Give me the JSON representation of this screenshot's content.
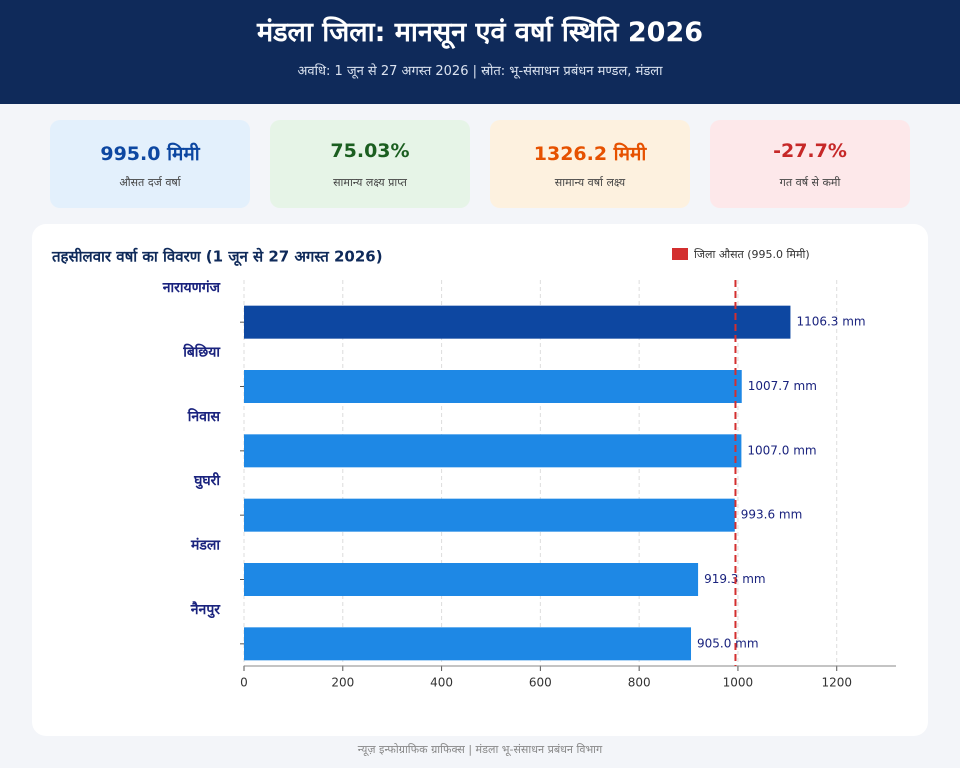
{
  "header": {
    "title": "मंडला जिला: मानसून एवं वर्षा स्थिति 2026",
    "subtitle": "अवधि: 1 जून से 27 अगस्त 2026  |  स्रोत: भू-संसाधन प्रबंधन मण्डल, मंडला"
  },
  "cards": [
    {
      "value": "995.0 मिमी",
      "label": "औसत दर्ज वर्षा"
    },
    {
      "value": "75.03%",
      "label": "सामान्य लक्ष्य प्राप्त"
    },
    {
      "value": "1326.2 मिमी",
      "label": "सामान्य वर्षा लक्ष्य"
    },
    {
      "value": "-27.7%",
      "label": "गत वर्ष से कमी"
    }
  ],
  "chart_data": {
    "type": "hbar",
    "title": "तहसीलवार वर्षा का विवरण (1 जून से 27 अगस्त 2026)",
    "categories": [
      "नारायणगंज",
      "बिछिया",
      "निवास",
      "घुघरी",
      "मंडला",
      "नैनपुर"
    ],
    "values": [
      1106.3,
      1007.7,
      1007.0,
      993.6,
      919.3,
      905.0
    ],
    "value_labels": [
      "1106.3 mm",
      "1007.7 mm",
      "1007.0 mm",
      "993.6 mm",
      "919.3 mm",
      "905.0 mm"
    ],
    "colors": [
      "#0d47a1",
      "#1e88e5",
      "#1e88e5",
      "#1e88e5",
      "#1e88e5",
      "#1e88e5"
    ],
    "reference_line": {
      "value": 995.0,
      "label": "जिला औसत (995.0 मिमी)",
      "color": "#d32f2f"
    },
    "xlim": [
      0,
      1320
    ],
    "xticks": [
      0,
      200,
      400,
      600,
      800,
      1000,
      1200
    ],
    "grid": true
  },
  "footer": "न्यूज़ इन्फोग्राफिक ग्राफिक्स | मंडला भू-संसाधन प्रबंधन विभाग"
}
